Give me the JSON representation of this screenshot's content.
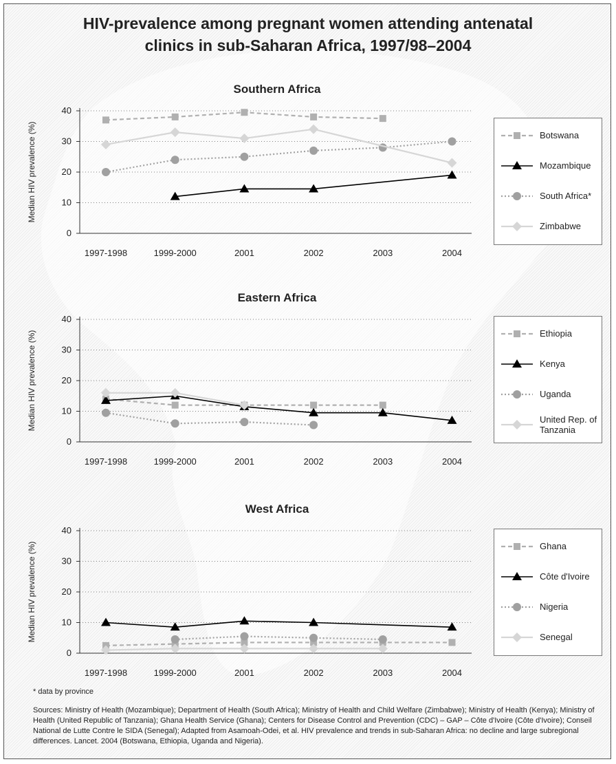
{
  "title_line1": "HIV-prevalence among pregnant women attending antenatal",
  "title_line2": "clinics in sub-Saharan Africa, 1997/98–2004",
  "footnote": "* data by province",
  "sources": "Sources: Ministry of Health (Mozambique); Department of Health (South Africa); Ministry of Health and Child Welfare (Zimbabwe); Ministry of Health (Kenya); Ministry of Health (United Republic of Tanzania); Ghana Health Service (Ghana); Centers for Disease Control and Prevention (CDC) – GAP – Côte d'Ivoire (Côte d'Ivoire); Conseil National de Lutte Contre le SIDA (Senegal); Adapted from Asamoah-Odei, et al. HIV prevalence and trends in sub-Saharan Africa: no decline and large subregional differences. Lancet. 2004 (Botswana, Ethiopia, Uganda and Nigeria).",
  "chart_data": [
    {
      "type": "line",
      "title": "Southern Africa",
      "ylabel": "Median HIV prevalence (%)",
      "ylim": [
        0,
        40
      ],
      "yticks": [
        "40",
        "30",
        "20",
        "10",
        "0"
      ],
      "categories": [
        "1997-1998",
        "1999-2000",
        "2001",
        "2002",
        "2003",
        "2004"
      ],
      "grid": "horizontal dotted",
      "legend_position": "right",
      "series": [
        {
          "name": "Botswana",
          "style": "dashed",
          "marker": "square",
          "color": "#b0b0b0",
          "values": [
            37,
            38,
            39.5,
            38,
            37.5,
            null
          ]
        },
        {
          "name": "Mozambique",
          "style": "solid",
          "marker": "triangle",
          "color": "#000000",
          "values": [
            null,
            12,
            14.5,
            14.5,
            null,
            19
          ]
        },
        {
          "name": "South Africa*",
          "style": "dotted",
          "marker": "circle",
          "color": "#a0a0a0",
          "values": [
            20,
            24,
            25,
            27,
            28,
            30
          ]
        },
        {
          "name": "Zimbabwe",
          "style": "solid",
          "marker": "diamond",
          "color": "#d6d6d6",
          "values": [
            29,
            33,
            31,
            34,
            null,
            23
          ]
        }
      ]
    },
    {
      "type": "line",
      "title": "Eastern Africa",
      "ylabel": "Median HIV prevalence (%)",
      "ylim": [
        0,
        40
      ],
      "yticks": [
        "40",
        "30",
        "20",
        "10",
        "0"
      ],
      "categories": [
        "1997-1998",
        "1999-2000",
        "2001",
        "2002",
        "2003",
        "2004"
      ],
      "grid": "horizontal dotted",
      "legend_position": "right",
      "series": [
        {
          "name": "Ethiopia",
          "style": "dashed",
          "marker": "square",
          "color": "#b0b0b0",
          "values": [
            14,
            12,
            12,
            12,
            12,
            null
          ]
        },
        {
          "name": "Kenya",
          "style": "solid",
          "marker": "triangle",
          "color": "#000000",
          "values": [
            13.5,
            15,
            11.5,
            9.5,
            9.5,
            7
          ]
        },
        {
          "name": "Uganda",
          "style": "dotted",
          "marker": "circle",
          "color": "#a0a0a0",
          "values": [
            9.5,
            6,
            6.5,
            5.5,
            null,
            null
          ]
        },
        {
          "name": "United Rep. of Tanzania",
          "style": "solid",
          "marker": "diamond",
          "color": "#d6d6d6",
          "values": [
            16,
            16,
            12,
            null,
            null,
            null
          ]
        }
      ]
    },
    {
      "type": "line",
      "title": "West Africa",
      "ylabel": "Median HIV prevalence (%)",
      "ylim": [
        0,
        40
      ],
      "yticks": [
        "40",
        "30",
        "20",
        "10",
        "0"
      ],
      "categories": [
        "1997-1998",
        "1999-2000",
        "2001",
        "2002",
        "2003",
        "2004"
      ],
      "grid": "horizontal dotted",
      "legend_position": "right",
      "series": [
        {
          "name": "Ghana",
          "style": "dashed",
          "marker": "square",
          "color": "#b0b0b0",
          "values": [
            2.5,
            3,
            3.5,
            3.5,
            3.5,
            3.5
          ]
        },
        {
          "name": "Côte d'Ivoire",
          "style": "solid",
          "marker": "triangle",
          "color": "#000000",
          "values": [
            10,
            8.5,
            10.5,
            10,
            null,
            8.5
          ]
        },
        {
          "name": "Nigeria",
          "style": "dotted",
          "marker": "circle",
          "color": "#a0a0a0",
          "values": [
            null,
            4.5,
            5.5,
            5,
            4.5,
            null
          ]
        },
        {
          "name": "Senegal",
          "style": "solid",
          "marker": "diamond",
          "color": "#d6d6d6",
          "values": [
            1,
            1.5,
            1.5,
            1.5,
            1.5,
            null
          ]
        }
      ]
    }
  ]
}
